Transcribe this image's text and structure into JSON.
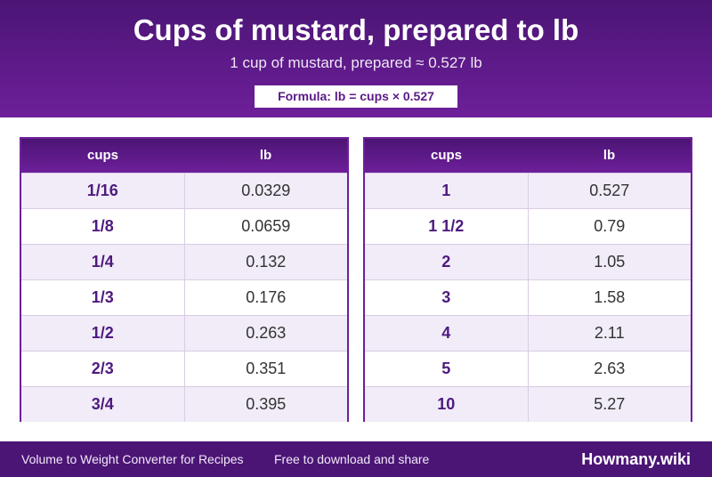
{
  "header": {
    "title": "Cups of mustard, prepared to lb",
    "subtitle": "1 cup of mustard, prepared ≈ 0.527 lb",
    "formula": "Formula: lb = cups × 0.527"
  },
  "tables": [
    {
      "headers": [
        "cups",
        "lb"
      ],
      "rows": [
        [
          "1/16",
          "0.0329"
        ],
        [
          "1/8",
          "0.0659"
        ],
        [
          "1/4",
          "0.132"
        ],
        [
          "1/3",
          "0.176"
        ],
        [
          "1/2",
          "0.263"
        ],
        [
          "2/3",
          "0.351"
        ],
        [
          "3/4",
          "0.395"
        ]
      ]
    },
    {
      "headers": [
        "cups",
        "lb"
      ],
      "rows": [
        [
          "1",
          "0.527"
        ],
        [
          "1 1/2",
          "0.79"
        ],
        [
          "2",
          "1.05"
        ],
        [
          "3",
          "1.58"
        ],
        [
          "4",
          "2.11"
        ],
        [
          "5",
          "2.63"
        ],
        [
          "10",
          "5.27"
        ]
      ]
    }
  ],
  "footer": {
    "left": "Volume to Weight Converter for Recipes",
    "middle": "Free to download and share",
    "brand": "Howmany.wiki"
  },
  "colors": {
    "primary": "#6d1f99",
    "dark": "#4b1575",
    "row_alt": "#f1ecf8"
  }
}
